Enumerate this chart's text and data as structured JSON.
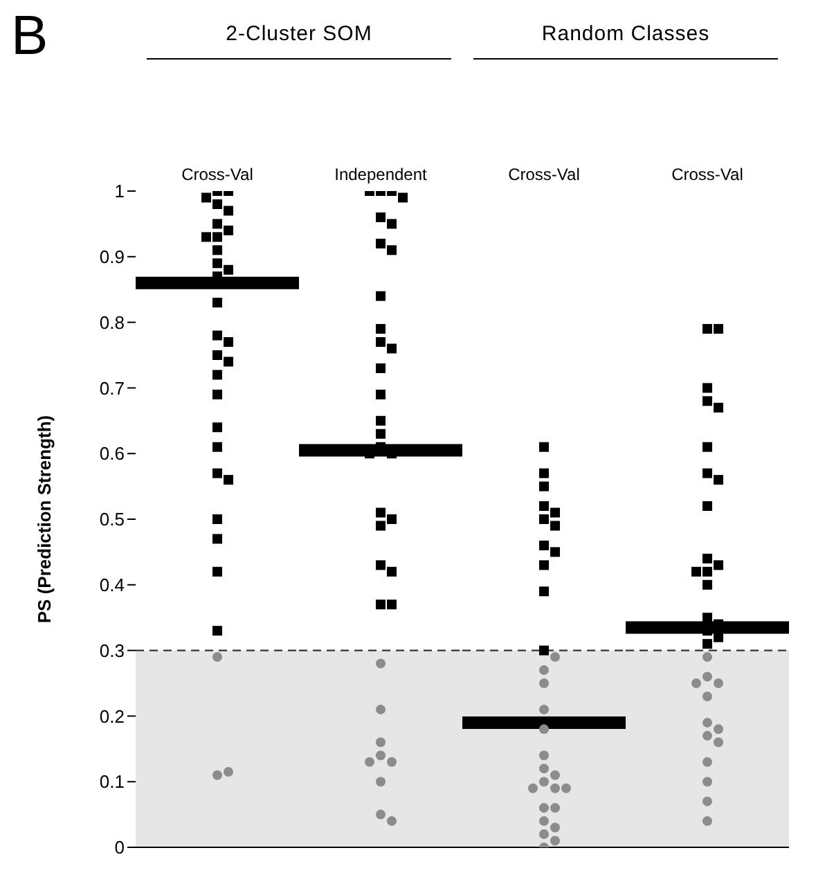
{
  "chart_data": [
    {
      "type": "scatter",
      "title": "2-Cluster SOM",
      "categories": [
        "Cross-Val"
      ],
      "ylabel": "PS (Prediction Strength)",
      "annotations": [
        "B"
      ],
      "ylim": [
        0,
        1
      ],
      "yticks": [
        0,
        0.1,
        0.2,
        0.3,
        0.4,
        0.5,
        0.6,
        0.7,
        0.8,
        0.9,
        1
      ],
      "ref_lines": [
        {
          "axis": "y",
          "value": 0.3,
          "color": "#333333",
          "line_style": "dashed"
        },
        {
          "axis": "y",
          "value": 0.86,
          "color": "#000000",
          "line_style": "solid"
        }
      ],
      "bands": [
        {
          "axis": "y",
          "from": 0,
          "to": 0.3,
          "color": "#e6e6e6"
        }
      ],
      "series": [
        {
          "color": "#000000",
          "marker": "square",
          "x": [
            "Cross-Val",
            "Cross-Val",
            "Cross-Val",
            "Cross-Val",
            "Cross-Val",
            "Cross-Val",
            "Cross-Val",
            "Cross-Val",
            "Cross-Val",
            "Cross-Val",
            "Cross-Val",
            "Cross-Val",
            "Cross-Val",
            "Cross-Val",
            "Cross-Val",
            "Cross-Val",
            "Cross-Val",
            "Cross-Val",
            "Cross-Val",
            "Cross-Val",
            "Cross-Val",
            "Cross-Val",
            "Cross-Val",
            "Cross-Val",
            "Cross-Val",
            "Cross-Val",
            "Cross-Val",
            "Cross-Val"
          ],
          "values": [
            1.0,
            1.0,
            0.99,
            0.98,
            0.97,
            0.95,
            0.94,
            0.93,
            0.93,
            0.91,
            0.89,
            0.88,
            0.87,
            0.83,
            0.78,
            0.77,
            0.75,
            0.74,
            0.72,
            0.69,
            0.64,
            0.61,
            0.57,
            0.56,
            0.5,
            0.47,
            0.42,
            0.33
          ]
        },
        {
          "color": "#8c8c8c",
          "marker": "circle",
          "x": [
            "Cross-Val",
            "Cross-Val",
            "Cross-Val"
          ],
          "values": [
            0.29,
            0.11,
            0.115
          ]
        }
      ]
    },
    {
      "type": "scatter",
      "categories": [
        "Independent"
      ],
      "tick_labels": "x",
      "ylim": [
        0,
        1
      ],
      "yticks": [
        0,
        0.1,
        0.2,
        0.3,
        0.4,
        0.5,
        0.6,
        0.7,
        0.8,
        0.9,
        1
      ],
      "ref_lines": [
        {
          "axis": "y",
          "value": 0.3,
          "color": "#333333",
          "line_style": "dashed"
        },
        {
          "axis": "y",
          "value": 0.605,
          "color": "#000000",
          "line_style": "solid"
        }
      ],
      "bands": [
        {
          "axis": "y",
          "from": 0,
          "to": 0.3,
          "color": "#e6e6e6"
        }
      ],
      "series": [
        {
          "color": "#000000",
          "marker": "square",
          "x": [
            "Independent",
            "Independent",
            "Independent",
            "Independent",
            "Independent",
            "Independent",
            "Independent",
            "Independent",
            "Independent",
            "Independent",
            "Independent",
            "Independent",
            "Independent",
            "Independent",
            "Independent",
            "Independent",
            "Independent",
            "Independent",
            "Independent",
            "Independent",
            "Independent",
            "Independent",
            "Independent",
            "Independent",
            "Independent",
            "Independent"
          ],
          "values": [
            1.0,
            1.0,
            1.0,
            0.99,
            0.96,
            0.95,
            0.92,
            0.91,
            0.84,
            0.79,
            0.77,
            0.76,
            0.73,
            0.69,
            0.65,
            0.63,
            0.61,
            0.6,
            0.6,
            0.51,
            0.5,
            0.49,
            0.43,
            0.42,
            0.37,
            0.37
          ]
        },
        {
          "color": "#8c8c8c",
          "marker": "circle",
          "x": [
            "Independent",
            "Independent",
            "Independent",
            "Independent",
            "Independent",
            "Independent",
            "Independent",
            "Independent",
            "Independent"
          ],
          "values": [
            0.28,
            0.21,
            0.16,
            0.14,
            0.13,
            0.13,
            0.1,
            0.05,
            0.04
          ]
        }
      ]
    },
    {
      "type": "scatter",
      "title": "Random Classes",
      "categories": [
        "Cross-Val"
      ],
      "tick_labels": "x",
      "ylim": [
        0,
        1
      ],
      "yticks": [
        0,
        0.1,
        0.2,
        0.3,
        0.4,
        0.5,
        0.6,
        0.7,
        0.8,
        0.9,
        1
      ],
      "ref_lines": [
        {
          "axis": "y",
          "value": 0.3,
          "color": "#333333",
          "line_style": "dashed"
        },
        {
          "axis": "y",
          "value": 0.19,
          "color": "#000000",
          "line_style": "solid"
        }
      ],
      "bands": [
        {
          "axis": "y",
          "from": 0,
          "to": 0.3,
          "color": "#e6e6e6"
        }
      ],
      "series": [
        {
          "color": "#000000",
          "marker": "square",
          "x": [
            "Cross-Val",
            "Cross-Val",
            "Cross-Val",
            "Cross-Val",
            "Cross-Val",
            "Cross-Val",
            "Cross-Val",
            "Cross-Val",
            "Cross-Val",
            "Cross-Val",
            "Cross-Val",
            "Cross-Val"
          ],
          "values": [
            0.61,
            0.57,
            0.55,
            0.52,
            0.51,
            0.5,
            0.49,
            0.46,
            0.45,
            0.43,
            0.39,
            0.3
          ]
        },
        {
          "color": "#8c8c8c",
          "marker": "circle",
          "x": [
            "Cross-Val",
            "Cross-Val",
            "Cross-Val",
            "Cross-Val",
            "Cross-Val",
            "Cross-Val",
            "Cross-Val",
            "Cross-Val",
            "Cross-Val",
            "Cross-Val",
            "Cross-Val",
            "Cross-Val",
            "Cross-Val",
            "Cross-Val",
            "Cross-Val",
            "Cross-Val",
            "Cross-Val",
            "Cross-Val",
            "Cross-Val"
          ],
          "values": [
            0.29,
            0.27,
            0.25,
            0.21,
            0.18,
            0.14,
            0.12,
            0.11,
            0.1,
            0.09,
            0.09,
            0.09,
            0.06,
            0.06,
            0.04,
            0.03,
            0.02,
            0.01,
            0.0
          ]
        }
      ]
    },
    {
      "type": "scatter",
      "categories": [
        "Cross-Val"
      ],
      "tick_labels": "x",
      "ylim": [
        0,
        1
      ],
      "yticks": [
        0,
        0.1,
        0.2,
        0.3,
        0.4,
        0.5,
        0.6,
        0.7,
        0.8,
        0.9,
        1
      ],
      "ref_lines": [
        {
          "axis": "y",
          "value": 0.3,
          "color": "#333333",
          "line_style": "dashed"
        },
        {
          "axis": "y",
          "value": 0.335,
          "color": "#000000",
          "line_style": "solid"
        }
      ],
      "bands": [
        {
          "axis": "y",
          "from": 0,
          "to": 0.3,
          "color": "#e6e6e6"
        }
      ],
      "series": [
        {
          "color": "#000000",
          "marker": "square",
          "x": [
            "Cross-Val",
            "Cross-Val",
            "Cross-Val",
            "Cross-Val",
            "Cross-Val",
            "Cross-Val",
            "Cross-Val",
            "Cross-Val",
            "Cross-Val",
            "Cross-Val",
            "Cross-Val",
            "Cross-Val",
            "Cross-Val",
            "Cross-Val",
            "Cross-Val",
            "Cross-Val",
            "Cross-Val",
            "Cross-Val",
            "Cross-Val"
          ],
          "values": [
            0.79,
            0.79,
            0.7,
            0.68,
            0.67,
            0.61,
            0.57,
            0.56,
            0.52,
            0.44,
            0.43,
            0.42,
            0.42,
            0.4,
            0.35,
            0.34,
            0.33,
            0.32,
            0.31
          ]
        },
        {
          "color": "#8c8c8c",
          "marker": "circle",
          "x": [
            "Cross-Val",
            "Cross-Val",
            "Cross-Val",
            "Cross-Val",
            "Cross-Val",
            "Cross-Val",
            "Cross-Val",
            "Cross-Val",
            "Cross-Val",
            "Cross-Val",
            "Cross-Val",
            "Cross-Val",
            "Cross-Val"
          ],
          "values": [
            0.29,
            0.26,
            0.25,
            0.25,
            0.23,
            0.19,
            0.18,
            0.17,
            0.16,
            0.13,
            0.1,
            0.07,
            0.04
          ]
        }
      ]
    }
  ]
}
